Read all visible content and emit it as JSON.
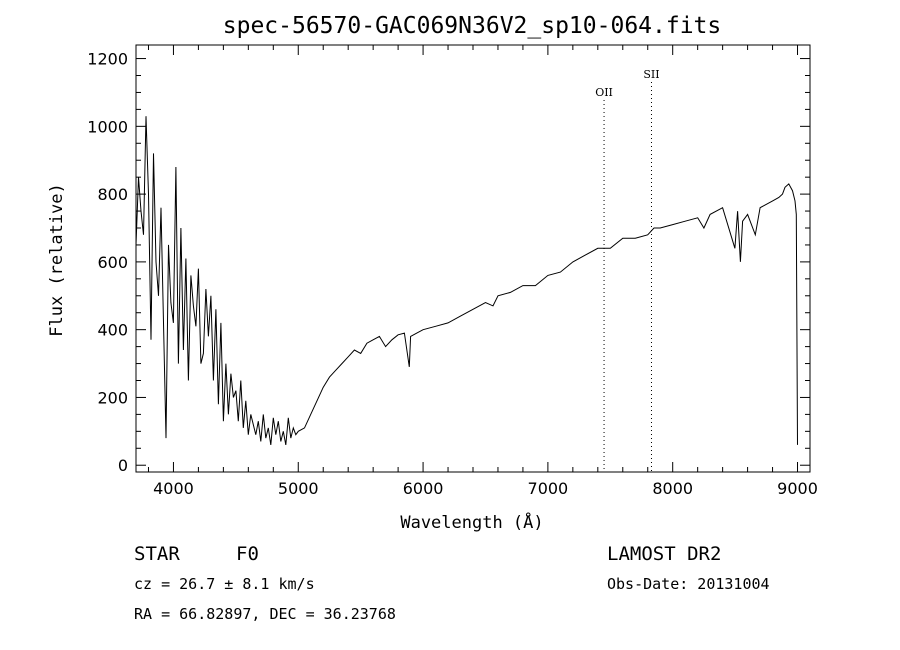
{
  "chart_data": {
    "type": "line",
    "title": "spec-56570-GAC069N36V2_sp10-064.fits",
    "xlabel": "Wavelength (Å)",
    "ylabel": "Flux (relative)",
    "xlim": [
      3700,
      9100
    ],
    "ylim": [
      -20,
      1240
    ],
    "x_ticks": [
      4000,
      5000,
      6000,
      7000,
      8000,
      9000
    ],
    "y_ticks": [
      0,
      200,
      400,
      600,
      800,
      1000,
      1200
    ],
    "grid": false,
    "line_color": "#000000",
    "series": [
      {
        "x": [
          3700,
          3720,
          3740,
          3760,
          3780,
          3800,
          3820,
          3840,
          3860,
          3880,
          3900,
          3920,
          3940,
          3960,
          3980,
          4000,
          4020,
          4040,
          4060,
          4080,
          4100,
          4120,
          4140,
          4160,
          4180,
          4200,
          4220,
          4240,
          4260,
          4280,
          4300,
          4320,
          4340,
          4360,
          4380,
          4400,
          4420,
          4440,
          4460,
          4480,
          4500,
          4520,
          4540,
          4560,
          4580,
          4600,
          4620,
          4640,
          4660,
          4680,
          4700,
          4720,
          4740,
          4760,
          4780,
          4800,
          4820,
          4840,
          4860,
          4880,
          4900,
          4920,
          4940,
          4960,
          4980,
          5000,
          5050,
          5100,
          5150,
          5200,
          5250,
          5300,
          5350,
          5400,
          5450,
          5500,
          5550,
          5600,
          5650,
          5700,
          5750,
          5800,
          5850,
          5890,
          5900,
          5950,
          6000,
          6100,
          6200,
          6300,
          6400,
          6500,
          6560,
          6600,
          6700,
          6800,
          6900,
          7000,
          7100,
          7200,
          7300,
          7400,
          7500,
          7600,
          7700,
          7800,
          7850,
          7900,
          8000,
          8100,
          8200,
          8250,
          8300,
          8400,
          8498,
          8520,
          8542,
          8560,
          8600,
          8662,
          8700,
          8800,
          8850,
          8880,
          8900,
          8930,
          8960,
          8980,
          8990,
          9000
        ],
        "y": [
          650,
          850,
          750,
          680,
          1030,
          800,
          370,
          920,
          600,
          500,
          760,
          420,
          80,
          650,
          480,
          420,
          880,
          300,
          700,
          340,
          610,
          250,
          560,
          470,
          410,
          580,
          300,
          330,
          520,
          380,
          500,
          250,
          460,
          180,
          420,
          130,
          300,
          150,
          270,
          200,
          220,
          130,
          250,
          110,
          190,
          90,
          150,
          120,
          90,
          130,
          70,
          150,
          80,
          110,
          60,
          140,
          90,
          130,
          70,
          100,
          60,
          140,
          80,
          110,
          90,
          100,
          110,
          150,
          190,
          230,
          260,
          280,
          300,
          320,
          340,
          330,
          360,
          370,
          380,
          350,
          370,
          385,
          390,
          290,
          380,
          390,
          400,
          410,
          420,
          440,
          460,
          480,
          470,
          500,
          510,
          530,
          530,
          560,
          570,
          600,
          620,
          640,
          640,
          670,
          670,
          680,
          700,
          700,
          710,
          720,
          730,
          700,
          740,
          760,
          640,
          750,
          600,
          720,
          740,
          680,
          760,
          780,
          790,
          800,
          820,
          830,
          810,
          780,
          740,
          60
        ]
      }
    ],
    "reference_lines": [
      {
        "label": "OII",
        "x": 7450
      },
      {
        "label": "SII",
        "x": 7830
      }
    ]
  },
  "info": {
    "object_class": "STAR",
    "subclass": "F0",
    "redshift": "cz = 26.7 ± 8.1 km/s",
    "coordinates": "RA =  66.82897, DEC =  36.23768",
    "survey": "LAMOST DR2",
    "obs_date": "Obs-Date: 20131004"
  }
}
